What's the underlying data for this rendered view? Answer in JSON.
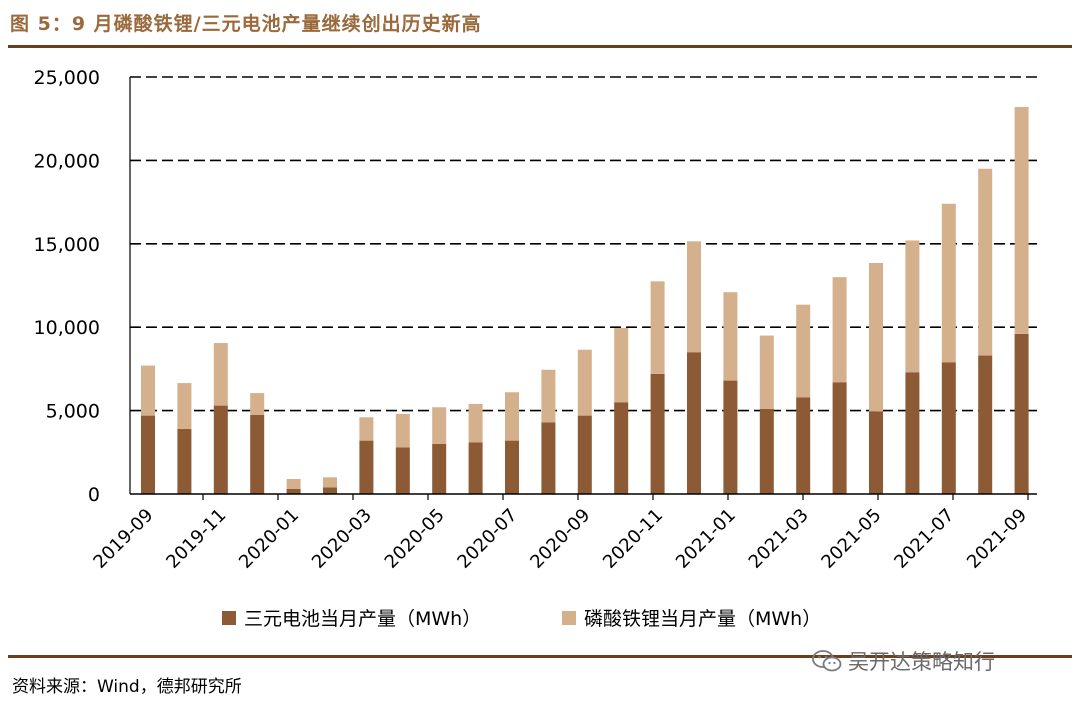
{
  "figure": {
    "title": "图 5：9 月磷酸铁锂/三元电池产量继续创出历史新高",
    "source": "资料来源：Wind，德邦研究所",
    "watermark": "吴开达策略知行"
  },
  "colors": {
    "series1": "#8c5a34",
    "series2": "#d5b08d",
    "accent": "#6b3f1d"
  },
  "chart_data": {
    "type": "bar",
    "stacked": true,
    "categories": [
      "2019-09",
      "2019-10",
      "2019-11",
      "2019-12",
      "2020-01",
      "2020-02",
      "2020-03",
      "2020-04",
      "2020-05",
      "2020-06",
      "2020-07",
      "2020-08",
      "2020-09",
      "2020-10",
      "2020-11",
      "2020-12",
      "2021-01",
      "2021-02",
      "2021-03",
      "2021-04",
      "2021-05",
      "2021-06",
      "2021-07",
      "2021-08",
      "2021-09"
    ],
    "x_tick_labels": [
      "2019-09",
      "2019-11",
      "2020-01",
      "2020-03",
      "2020-05",
      "2020-07",
      "2020-09",
      "2020-11",
      "2021-01",
      "2021-03",
      "2021-05",
      "2021-07",
      "2021-09"
    ],
    "y_tick_labels": [
      "0",
      "5,000",
      "10,000",
      "15,000",
      "20,000",
      "25,000"
    ],
    "ylim": [
      0,
      25000
    ],
    "grid": "horizontal-dashed",
    "legend_position": "bottom",
    "series": [
      {
        "name": "三元电池当月产量（MWh）",
        "values": [
          4700,
          3900,
          5300,
          4750,
          300,
          400,
          3200,
          2800,
          3000,
          3100,
          3200,
          4300,
          4700,
          5500,
          7200,
          8500,
          6800,
          5100,
          5800,
          6700,
          4950,
          7300,
          7900,
          8300,
          9600
        ]
      },
      {
        "name": "磷酸铁锂当月产量（MWh）",
        "values": [
          3000,
          2750,
          3750,
          1300,
          600,
          600,
          1400,
          2000,
          2200,
          2300,
          2900,
          3150,
          3950,
          4450,
          5550,
          6650,
          5300,
          4400,
          5550,
          6300,
          8900,
          7900,
          9500,
          11200,
          13600
        ]
      }
    ]
  }
}
